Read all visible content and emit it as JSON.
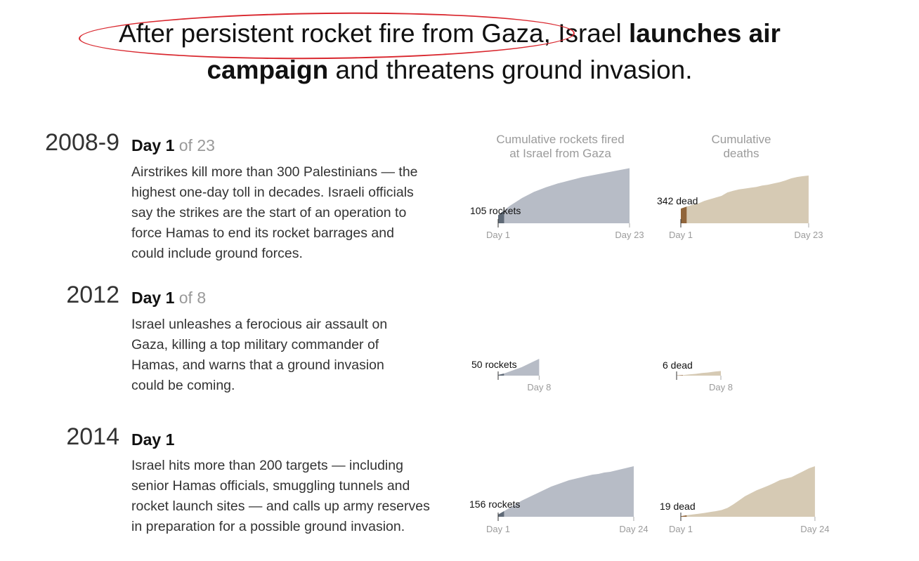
{
  "headline": {
    "part1": "After persistent rocket fire from Gaza, ",
    "part2": "Israel ",
    "bold1": "launches air",
    "bold2": "campaign",
    "part3": " and threatens ground invasion."
  },
  "column_titles": {
    "rockets": [
      "Cumulative rockets fired",
      "at Israel from Gaza"
    ],
    "deaths": [
      "Cumulative",
      "deaths"
    ]
  },
  "conflicts": [
    {
      "year": "2008-9",
      "day_label": "Day 1",
      "of_label": "of 23",
      "description": "Airstrikes kill more than 300 Palestinians — the highest one-day toll in decades. Israeli officials say the strikes are the start of an operation to force Hamas to end its rocket barrages and could include ground forces."
    },
    {
      "year": "2012",
      "day_label": "Day 1",
      "of_label": "of 8",
      "description": "Israel unleashes a ferocious air assault on Gaza, killing a top military commander of Hamas, and warns that a ground invasion could be coming."
    },
    {
      "year": "2014",
      "day_label": "Day 1",
      "of_label": "",
      "description": "Israel hits more than 200 targets — including senior Hamas officials, smuggling tunnels and rocket launch sites — and calls up army reserves in preparation for a possible ground invasion."
    }
  ],
  "colors": {
    "rockets_fill": "#b7bcc6",
    "deaths_fill": "#d6cab4",
    "highlight_rockets": "#55606e",
    "highlight_deaths": "#8a5a2c",
    "oval": "#d9272e",
    "axis_label": "#9b9b9b"
  },
  "chart_data": [
    {
      "type": "area",
      "title": "Cumulative rockets fired at Israel from Gaza",
      "conflict": "2008-9",
      "x": [
        1,
        2,
        3,
        4,
        5,
        6,
        7,
        8,
        9,
        10,
        11,
        12,
        13,
        14,
        15,
        16,
        17,
        18,
        19,
        20,
        21,
        22,
        23
      ],
      "y": [
        105,
        170,
        230,
        280,
        330,
        370,
        410,
        440,
        470,
        495,
        520,
        540,
        560,
        580,
        600,
        615,
        630,
        645,
        660,
        675,
        690,
        705,
        720
      ],
      "ylim": [
        0,
        1100
      ],
      "tick_labels": [
        "Day 1",
        "Day 23"
      ],
      "annotation": "105 rockets"
    },
    {
      "type": "area",
      "title": "Cumulative deaths",
      "conflict": "2008-9",
      "x": [
        1,
        2,
        3,
        4,
        5,
        6,
        7,
        8,
        9,
        10,
        11,
        12,
        13,
        14,
        15,
        16,
        17,
        18,
        19,
        20,
        21,
        22,
        23
      ],
      "y": [
        342,
        390,
        430,
        460,
        520,
        560,
        600,
        640,
        720,
        760,
        790,
        810,
        830,
        850,
        880,
        900,
        930,
        960,
        1000,
        1050,
        1080,
        1100,
        1115
      ],
      "ylim": [
        0,
        1115
      ],
      "tick_labels": [
        "Day 1",
        "Day 23"
      ],
      "annotation": "342 dead"
    },
    {
      "type": "area",
      "title": "Cumulative rockets fired at Israel from Gaza",
      "conflict": "2012",
      "x": [
        1,
        2,
        3,
        4,
        5,
        6,
        7,
        8
      ],
      "y": [
        50,
        150,
        300,
        450,
        600,
        800,
        1000,
        1200
      ],
      "ylim": [
        0,
        3600
      ],
      "tick_labels": [
        "Day 8"
      ],
      "annotation": "50 rockets"
    },
    {
      "type": "area",
      "title": "Cumulative deaths",
      "conflict": "2012",
      "x": [
        1,
        2,
        3,
        4,
        5,
        6,
        7,
        8
      ],
      "y": [
        6,
        20,
        40,
        60,
        90,
        110,
        140,
        160
      ],
      "ylim": [
        0,
        1500
      ],
      "tick_labels": [
        "Day 8"
      ],
      "annotation": "6 dead"
    },
    {
      "type": "area",
      "title": "Cumulative rockets fired at Israel from Gaza",
      "conflict": "2014",
      "x": [
        1,
        2,
        3,
        4,
        5,
        6,
        7,
        8,
        9,
        10,
        11,
        12,
        13,
        14,
        15,
        16,
        17,
        18,
        19,
        20,
        21,
        22,
        23,
        24
      ],
      "y": [
        156,
        400,
        650,
        900,
        1150,
        1350,
        1550,
        1750,
        1950,
        2150,
        2300,
        2450,
        2600,
        2700,
        2800,
        2900,
        3000,
        3050,
        3150,
        3200,
        3300,
        3400,
        3500,
        3600
      ],
      "ylim": [
        0,
        3600
      ],
      "tick_labels": [
        "Day 1",
        "Day 24"
      ],
      "annotation": "156 rockets"
    },
    {
      "type": "area",
      "title": "Cumulative deaths",
      "conflict": "2014",
      "x": [
        1,
        2,
        3,
        4,
        5,
        6,
        7,
        8,
        9,
        10,
        11,
        12,
        13,
        14,
        15,
        16,
        17,
        18,
        19,
        20,
        21,
        22,
        23,
        24
      ],
      "y": [
        19,
        50,
        80,
        100,
        130,
        160,
        190,
        230,
        300,
        420,
        560,
        700,
        800,
        900,
        980,
        1060,
        1150,
        1250,
        1300,
        1350,
        1450,
        1550,
        1650,
        1720
      ],
      "ylim": [
        0,
        1720
      ],
      "tick_labels": [
        "Day 1",
        "Day 24"
      ],
      "annotation": "19 dead"
    }
  ]
}
